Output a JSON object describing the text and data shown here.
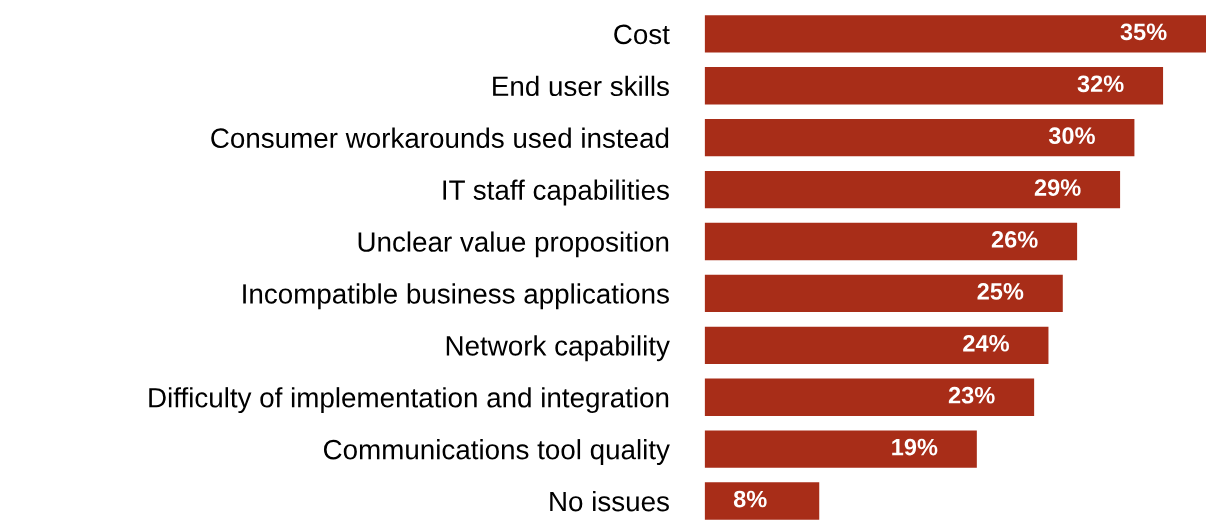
{
  "chart_data": {
    "type": "bar",
    "orientation": "horizontal",
    "color": "#a82d18",
    "categories": [
      "Cost",
      "End user skills",
      "Consumer workarounds used instead",
      "IT staff capabilities",
      "Unclear value proposition",
      "Incompatible business applications",
      "Network capability",
      "Difficulty of implementation and integration",
      "Communications tool quality",
      "No issues"
    ],
    "values": [
      35,
      32,
      30,
      29,
      26,
      25,
      24,
      23,
      19,
      8
    ],
    "value_labels": [
      "35%",
      "32%",
      "30%",
      "29%",
      "26%",
      "25%",
      "24%",
      "23%",
      "19%",
      "8%"
    ],
    "grid": false,
    "legend": false
  }
}
